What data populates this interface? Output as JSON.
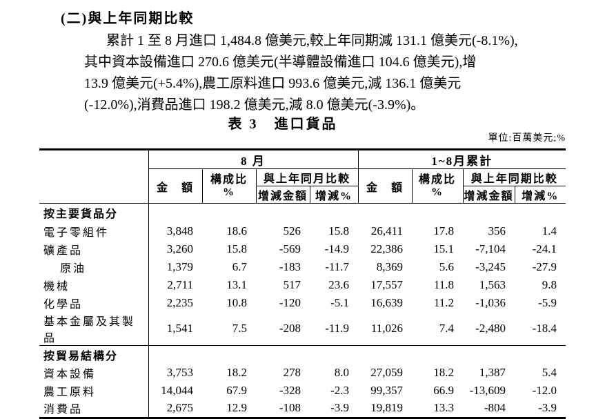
{
  "page": {
    "heading": "(二)與上年同期比較",
    "paragraph_lines": [
      "累計 1 至 8 月進口 1,484.8 億美元,較上年同期減 131.1 億美元(-8.1%),",
      "其中資本設備進口 270.6 億美元(半導體設備進口 104.6 億美元),增",
      "13.9 億美元(+5.4%),農工原料進口 993.6 億美元,減 136.1 億美元",
      "(-12.0%),消費品進口 198.2 億美元,減 8.0 億美元(-3.9%)。"
    ],
    "table_title": "表 3　進口貨品",
    "unit_note": "單位:百萬美元;%"
  },
  "table": {
    "col_groups": {
      "august": "8 月",
      "cumulative": "1~8月累計"
    },
    "headers": {
      "amount": "金　額",
      "composition": "構成比\n%",
      "yoy_month": "與上年同月比較",
      "yoy_period": "與上年同期比較",
      "change_amount": "增減金額",
      "change_pct": "增減%"
    },
    "sections": [
      {
        "label": "按主要貨品分",
        "rows": [
          {
            "label": "電子零組件",
            "values": [
              "3,848",
              "18.6",
              "526",
              "15.8",
              "26,411",
              "17.8",
              "356",
              "1.4"
            ]
          },
          {
            "label": "礦產品",
            "values": [
              "3,260",
              "15.8",
              "-569",
              "-14.9",
              "22,386",
              "15.1",
              "-7,104",
              "-24.1"
            ]
          },
          {
            "label": "原油",
            "values": [
              "1,379",
              "6.7",
              "-183",
              "-11.7",
              "8,369",
              "5.6",
              "-3,245",
              "-27.9"
            ]
          },
          {
            "label": "機械",
            "values": [
              "2,711",
              "13.1",
              "517",
              "23.6",
              "17,557",
              "11.8",
              "1,563",
              "9.8"
            ]
          },
          {
            "label": "化學品",
            "values": [
              "2,235",
              "10.8",
              "-120",
              "-5.1",
              "16,639",
              "11.2",
              "-1,036",
              "-5.9"
            ]
          },
          {
            "label": "基本金屬及其製品",
            "values": [
              "1,541",
              "7.5",
              "-208",
              "-11.9",
              "11,026",
              "7.4",
              "-2,480",
              "-18.4"
            ]
          }
        ]
      },
      {
        "label": "按貿易結構分",
        "rows": [
          {
            "label": "資本設備",
            "values": [
              "3,753",
              "18.2",
              "278",
              "8.0",
              "27,059",
              "18.2",
              "1,387",
              "5.4"
            ]
          },
          {
            "label": "農工原料",
            "values": [
              "14,044",
              "67.9",
              "-328",
              "-2.3",
              "99,357",
              "66.9",
              "-13,609",
              "-12.0"
            ]
          },
          {
            "label": "消費品",
            "values": [
              "2,675",
              "12.9",
              "-108",
              "-3.9",
              "19,819",
              "13.3",
              "-804",
              "-3.9"
            ]
          }
        ]
      }
    ]
  }
}
